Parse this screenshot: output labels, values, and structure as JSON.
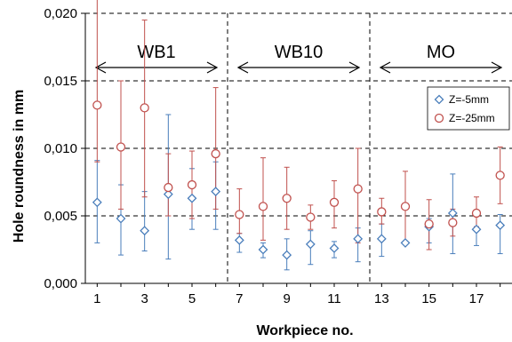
{
  "chart_data": {
    "type": "scatter",
    "xlabel": "Workpiece no.",
    "ylabel": "Hole roundness in mm",
    "xlim": [
      0.5,
      18.5
    ],
    "ylim": [
      0,
      0.02
    ],
    "x_ticks": [
      1,
      3,
      5,
      7,
      9,
      11,
      13,
      15,
      17
    ],
    "y_ticks": [
      "0,000",
      "0,005",
      "0,010",
      "0,015",
      "0,020"
    ],
    "y_tick_values": [
      0,
      0.005,
      0.01,
      0.015,
      0.02
    ],
    "grid": "horizontal dashed",
    "section_dividers": [
      6.5,
      12.5
    ],
    "sections": [
      {
        "label": "WB1",
        "from": 0.5,
        "to": 6.5
      },
      {
        "label": "WB10",
        "from": 6.5,
        "to": 12.5
      },
      {
        "label": "MO",
        "from": 12.5,
        "to": 18.5
      }
    ],
    "legend_position": "top-right",
    "series": [
      {
        "name": "Z=-5mm",
        "marker": "diamond",
        "color": "#4a7ebb",
        "x": [
          1,
          2,
          3,
          4,
          5,
          6,
          7,
          8,
          9,
          10,
          11,
          12,
          13,
          14,
          15,
          16,
          17,
          18
        ],
        "y": [
          0.006,
          0.0048,
          0.0039,
          0.0066,
          0.0063,
          0.0068,
          0.0032,
          0.0025,
          0.0021,
          0.0029,
          0.0026,
          0.0033,
          0.0033,
          0.003,
          0.0042,
          0.0052,
          0.004,
          0.0043
        ],
        "err_low": [
          0.003,
          0.0027,
          0.0015,
          0.0048,
          0.0023,
          0.0028,
          0.0009,
          0.0006,
          0.0011,
          0.0015,
          0.0007,
          0.0017,
          0.0013,
          0.0001,
          0.0012,
          0.003,
          0.0012,
          0.0021
        ],
        "err_high": [
          0.0031,
          0.0025,
          0.0029,
          0.0059,
          0.0022,
          0.0022,
          0.0005,
          0.0005,
          0.0012,
          0.001,
          0.0005,
          0.0008,
          0.0011,
          0.0001,
          0.0006,
          0.0029,
          0.0011,
          0.0008
        ]
      },
      {
        "name": "Z=-25mm",
        "marker": "circle",
        "color": "#c0504d",
        "x": [
          1,
          2,
          3,
          4,
          5,
          6,
          7,
          8,
          9,
          10,
          11,
          12,
          13,
          14,
          15,
          16,
          17,
          18
        ],
        "y": [
          0.0132,
          0.0101,
          0.013,
          0.0071,
          0.0073,
          0.0096,
          0.0051,
          0.0057,
          0.0063,
          0.0049,
          0.006,
          0.007,
          0.0053,
          0.0057,
          0.0044,
          0.0045,
          0.0052,
          0.008
        ],
        "err_low": [
          0.0042,
          0.0046,
          0.0066,
          0.0021,
          0.0025,
          0.0041,
          0.0014,
          0.0025,
          0.0023,
          0.0009,
          0.0019,
          0.004,
          0.0009,
          0.0028,
          0.0019,
          0.001,
          0.001,
          0.0021
        ],
        "err_high": [
          0.0088,
          0.0049,
          0.0065,
          0.0025,
          0.0025,
          0.0049,
          0.0019,
          0.0036,
          0.0023,
          0.0009,
          0.0016,
          0.003,
          0.001,
          0.0026,
          0.0018,
          0.001,
          0.0012,
          0.0021
        ]
      }
    ]
  }
}
